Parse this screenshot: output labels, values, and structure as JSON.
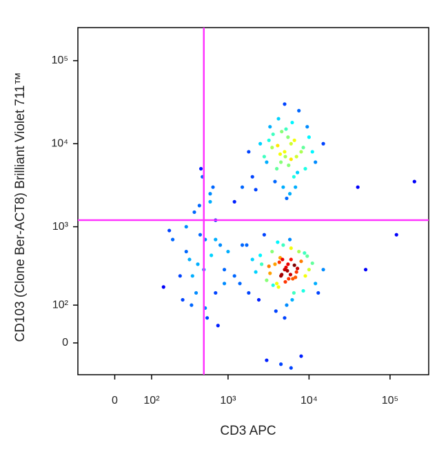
{
  "chart_data": {
    "type": "scatter",
    "x_label": "CD3 APC",
    "y_label": "CD103 (Clone Ber-ACT8) Brilliant Violet 711™",
    "scale": "arcsinh",
    "cofactor": 80,
    "xlim": [
      -100,
      300000
    ],
    "ylim": [
      -80,
      250000
    ],
    "xticks": [
      0,
      {
        "value": 100,
        "label": "10²"
      },
      {
        "value": 1000,
        "label": "10³"
      },
      {
        "value": 10000,
        "label": "10⁴"
      },
      {
        "value": 100000,
        "label": "10⁵"
      }
    ],
    "yticks": [
      0,
      {
        "value": 100,
        "label": "10²"
      },
      {
        "value": 1000,
        "label": "10³"
      },
      {
        "value": 10000,
        "label": "10⁴"
      },
      {
        "value": 100000,
        "label": "10⁵"
      }
    ],
    "gates": {
      "x": 500,
      "y": 1200,
      "color": "#ff33ff"
    },
    "points": {
      "x": [
        5000,
        4500,
        6000,
        5500,
        4000,
        7000,
        3500,
        6500,
        5200,
        4800,
        3000,
        8000,
        9000,
        2500,
        4200,
        5800,
        6200,
        3800,
        10000,
        12000,
        2000,
        1500,
        7500,
        4600,
        5300,
        3200,
        8500,
        2800,
        6800,
        15000,
        1200,
        1800,
        5000,
        4400,
        6000,
        3600,
        7200,
        9500,
        2200,
        11000,
        5600,
        4100,
        3300,
        6600,
        5100,
        5000,
        4500,
        6000,
        5500,
        4000,
        7000,
        3500,
        6500,
        5200,
        4800,
        3000,
        8000,
        9000,
        2500,
        4200,
        5800,
        6200,
        3800,
        10000,
        12000,
        2000,
        1500,
        7500,
        4600,
        5300,
        3200,
        8500,
        2800,
        6800,
        15000,
        1200,
        1800,
        5000,
        4400,
        6000,
        3600,
        7200,
        9500,
        2200,
        11000,
        5600,
        4100,
        3300,
        6600,
        5100,
        900,
        1000,
        1400,
        700,
        2600,
        3900,
        4700,
        5400,
        6300,
        13000,
        8800,
        2400,
        1700,
        4300,
        5900,
        500,
        400,
        300,
        600,
        450,
        350,
        700,
        250,
        550,
        480,
        200,
        150,
        420,
        380,
        650,
        520,
        300,
        800,
        900,
        460,
        330,
        270,
        600,
        750,
        180,
        520,
        440,
        360,
        620,
        700,
        3000,
        6000,
        8000,
        4500,
        200000,
        120000,
        40000,
        50000
      ],
      "y": [
        8000,
        6000,
        10000,
        12000,
        5000,
        7000,
        9000,
        4000,
        15000,
        3000,
        6000,
        8000,
        5000,
        10000,
        20000,
        2500,
        18000,
        3500,
        12000,
        6000,
        4000,
        3000,
        25000,
        14000,
        2200,
        11000,
        9000,
        7000,
        3000,
        10000,
        2000,
        8000,
        30000,
        7500,
        6500,
        13000,
        4500,
        16000,
        2800,
        8000,
        5500,
        9500,
        16000,
        11000,
        7000,
        300,
        250,
        400,
        350,
        200,
        280,
        500,
        150,
        320,
        600,
        220,
        380,
        250,
        450,
        180,
        700,
        120,
        350,
        300,
        200,
        400,
        600,
        500,
        260,
        100,
        330,
        160,
        800,
        240,
        300,
        250,
        150,
        60,
        420,
        550,
        190,
        310,
        440,
        280,
        360,
        230,
        650,
        270,
        340,
        210,
        300,
        500,
        200,
        700,
        350,
        80,
        400,
        290,
        230,
        150,
        480,
        120,
        600,
        370,
        260,
        300,
        150,
        500,
        2000,
        800,
        100,
        1200,
        250,
        60,
        4000,
        700,
        180,
        350,
        1500,
        3000,
        90,
        1000,
        600,
        200,
        5000,
        400,
        120,
        2500,
        40,
        900,
        700,
        1800,
        250,
        450,
        150,
        -40,
        -60,
        -30,
        -50,
        3500,
        800,
        3000,
        300
      ]
    }
  }
}
